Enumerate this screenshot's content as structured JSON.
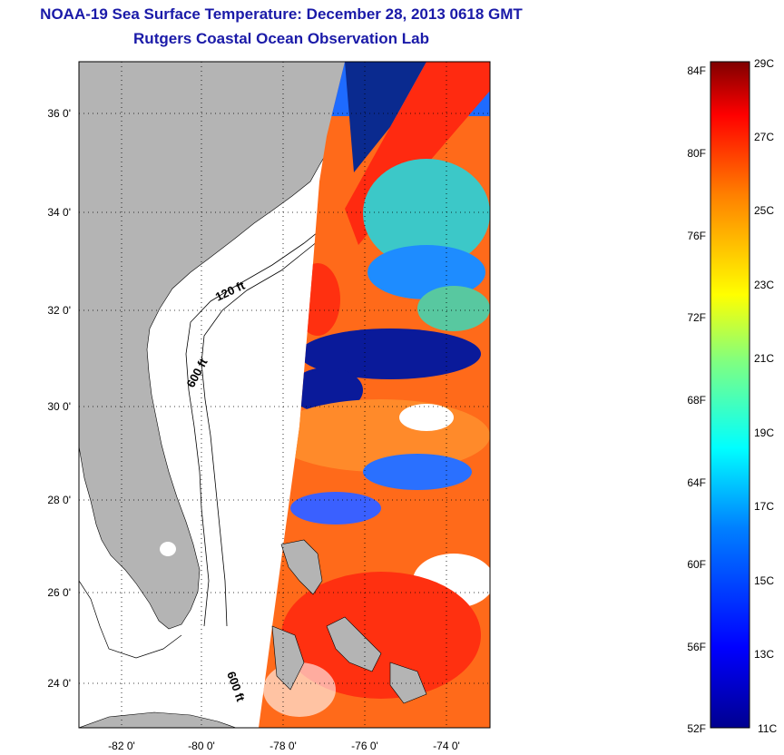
{
  "header": {
    "title": "NOAA-19 Sea Surface Temperature:  December 28, 2013 0618 GMT",
    "subtitle": "Rutgers Coastal Ocean Observation Lab"
  },
  "map": {
    "lat_ticks": [
      "36 0'",
      "34 0'",
      "32 0'",
      "30 0'",
      "28 0'",
      "26 0'",
      "24 0'"
    ],
    "lon_ticks": [
      "-82 0'",
      "-80 0'",
      "-78 0'",
      "-76 0'",
      "-74 0'"
    ],
    "contour_labels": [
      "120 ft",
      "600 ft",
      "600 ft"
    ],
    "colors": {
      "land": "#b4b4b4",
      "background": "#ffffff",
      "frame": "#000000"
    }
  },
  "colorbar": {
    "fahrenheit": [
      "84F",
      "80F",
      "76F",
      "72F",
      "68F",
      "64F",
      "60F",
      "56F",
      "52F"
    ],
    "celsius": [
      "29C",
      "27C",
      "25C",
      "23C",
      "21C",
      "19C",
      "17C",
      "15C",
      "13C",
      "11C"
    ],
    "colors": [
      "#7f0000",
      "#ff0000",
      "#ff8000",
      "#ffff00",
      "#80ff80",
      "#00ffff",
      "#0080ff",
      "#0000ff",
      "#00008f"
    ]
  }
}
